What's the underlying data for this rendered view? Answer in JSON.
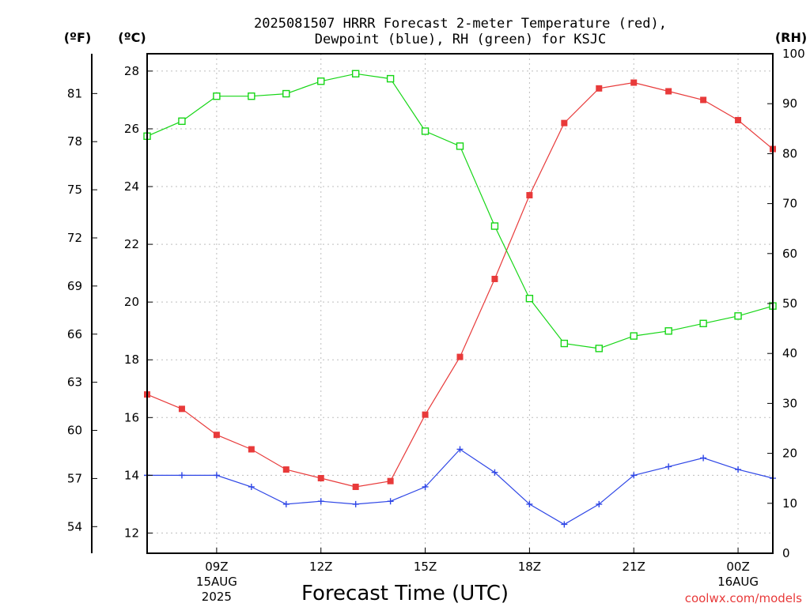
{
  "chart_data": {
    "type": "line",
    "title": "2025081507 HRRR Forecast 2-meter Temperature (red),",
    "subtitle": "Dewpoint (blue), RH (green) for KSJC",
    "xlabel": "Forecast Time (UTC)",
    "units": {
      "fahrenheit": "(ºF)",
      "celsius": "(ºC)",
      "rh": "(RH)"
    },
    "credit": "coolwx.com/models",
    "x": [
      7,
      8,
      9,
      10,
      11,
      12,
      13,
      14,
      15,
      16,
      17,
      18,
      19,
      20,
      21,
      22,
      23,
      24,
      25
    ],
    "xlim": [
      7,
      25
    ],
    "x_ticks": [
      {
        "x": 9,
        "label": "09Z",
        "sub1": "15AUG",
        "sub2": "2025"
      },
      {
        "x": 12,
        "label": "12Z",
        "sub1": "",
        "sub2": ""
      },
      {
        "x": 15,
        "label": "15Z",
        "sub1": "",
        "sub2": ""
      },
      {
        "x": 18,
        "label": "18Z",
        "sub1": "",
        "sub2": ""
      },
      {
        "x": 21,
        "label": "21Z",
        "sub1": "",
        "sub2": ""
      },
      {
        "x": 24,
        "label": "00Z",
        "sub1": "16AUG",
        "sub2": ""
      }
    ],
    "y_celsius": {
      "lim": [
        11.3,
        28.6
      ],
      "ticks": [
        12,
        14,
        16,
        18,
        20,
        22,
        24,
        26,
        28
      ]
    },
    "y_fahrenheit_ticks": [
      54,
      57,
      60,
      63,
      66,
      69,
      72,
      75,
      78,
      81
    ],
    "y_rh": {
      "lim": [
        0,
        100
      ],
      "ticks": [
        0,
        10,
        20,
        30,
        40,
        50,
        60,
        70,
        80,
        90,
        100
      ]
    },
    "grid": true,
    "series": [
      {
        "axis": "celsius",
        "color": "#e83a3a",
        "marker": "square-filled",
        "values": [
          16.8,
          16.3,
          15.4,
          14.9,
          14.2,
          13.9,
          13.6,
          13.8,
          16.1,
          18.1,
          20.8,
          23.7,
          26.2,
          27.4,
          27.6,
          27.3,
          27.0,
          26.3,
          25.3
        ]
      },
      {
        "axis": "celsius",
        "color": "#2e46e6",
        "marker": "plus",
        "values": [
          14.0,
          14.0,
          14.0,
          13.6,
          13.0,
          13.1,
          13.0,
          13.1,
          13.6,
          14.9,
          14.1,
          13.0,
          12.3,
          13.0,
          14.0,
          14.3,
          14.6,
          14.2,
          13.9
        ]
      },
      {
        "axis": "rh",
        "color": "#16d616",
        "marker": "square-open",
        "values": [
          83.5,
          86.5,
          91.5,
          91.5,
          92.0,
          94.5,
          96.0,
          95.0,
          84.5,
          81.5,
          65.5,
          51.0,
          42.0,
          41.0,
          43.5,
          44.5,
          46.0,
          47.5,
          49.5
        ]
      }
    ]
  }
}
